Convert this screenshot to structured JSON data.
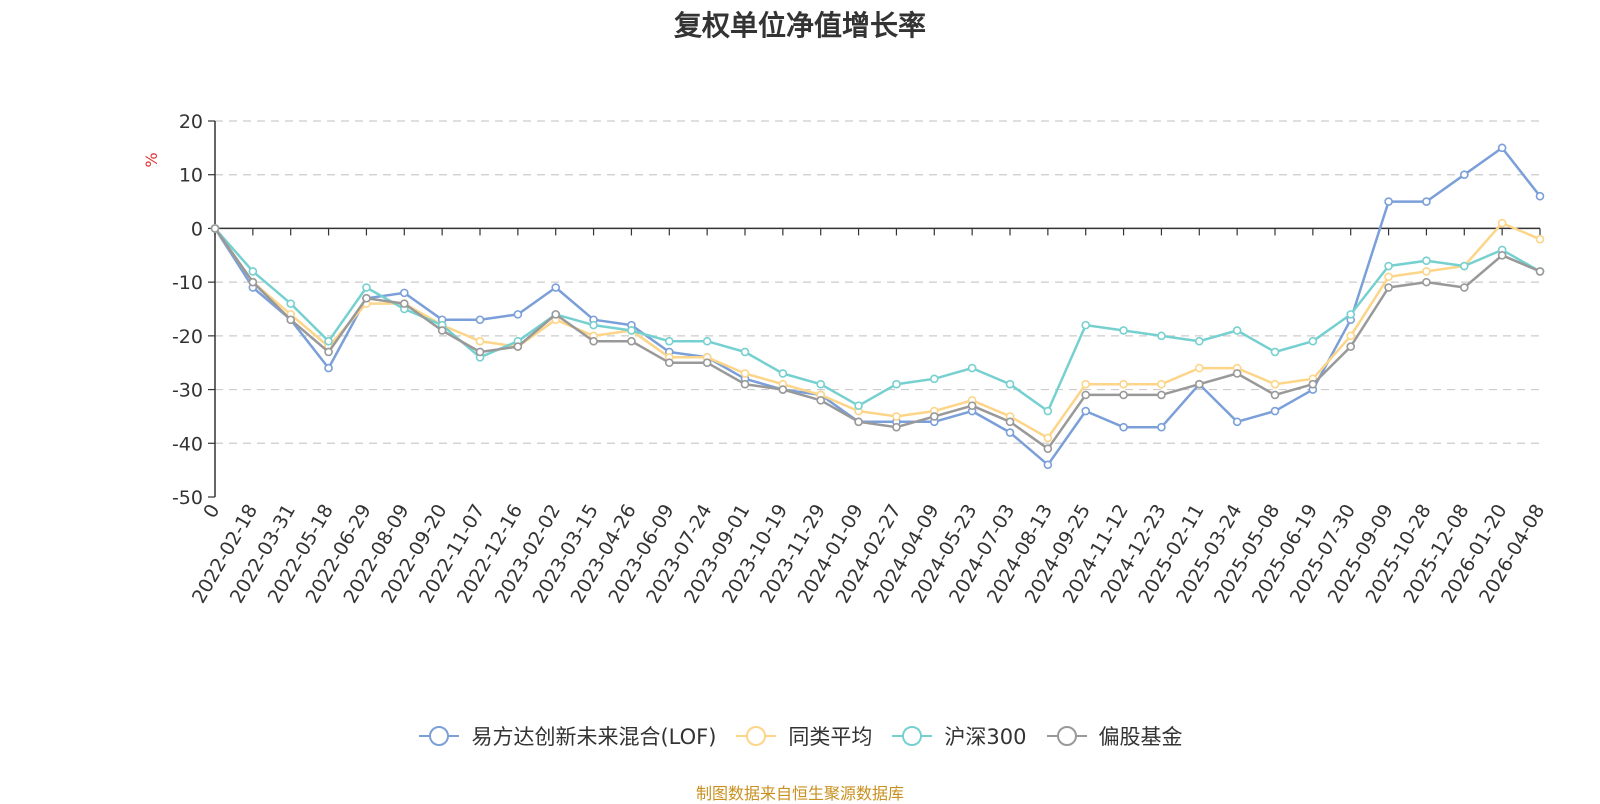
{
  "chart_data": {
    "type": "line",
    "title": "复权单位净值增长率",
    "ylabel": "%",
    "ylim": [
      -50,
      20
    ],
    "yticks": [
      20,
      10,
      0,
      -10,
      -20,
      -30,
      -40,
      -50
    ],
    "grid": true,
    "legend_position": "bottom",
    "x_tick_labels": [
      "0",
      "2022-02-18",
      "2022-03-31",
      "2022-05-18",
      "2022-06-29",
      "2022-08-09",
      "2022-09-20",
      "2022-11-07",
      "2022-12-16",
      "2023-02-02",
      "2023-03-15",
      "2023-04-26",
      "2023-06-09",
      "2023-07-24",
      "2023-09-01",
      "2023-10-19",
      "2023-11-29",
      "2024-01-09",
      "2024-02-27",
      "2024-04-09",
      "2024-05-23",
      "2024-07-03",
      "2024-08-13",
      "2024-09-25",
      "2024-11-12",
      "2024-12-23",
      "2025-02-11",
      "2025-03-24",
      "2025-05-08",
      "2025-06-19",
      "2025-07-30",
      "2025-09-09",
      "2025-10-28",
      "2025-12-08",
      "2026-01-20",
      "2026-04-08"
    ],
    "series": [
      {
        "name": "易方达创新未来混合(LOF)",
        "color": "#7b9fd8",
        "values": [
          0,
          -11,
          -17,
          -26,
          -13,
          -12,
          -17,
          -17,
          -16,
          -11,
          -17,
          -18,
          -23,
          -24,
          -28,
          -30,
          -31,
          -36,
          -36,
          -36,
          -34,
          -38,
          -44,
          -34,
          -37,
          -37,
          -29,
          -36,
          -34,
          -30,
          -17,
          5,
          5,
          10,
          15,
          6
        ]
      },
      {
        "name": "同类平均",
        "color": "#fdd589",
        "values": [
          0,
          -10,
          -16,
          -22,
          -14,
          -14,
          -18,
          -21,
          -22,
          -17,
          -20,
          -19,
          -24,
          -24,
          -27,
          -29,
          -31,
          -34,
          -35,
          -34,
          -32,
          -35,
          -39,
          -29,
          -29,
          -29,
          -26,
          -26,
          -29,
          -28,
          -20,
          -9,
          -8,
          -7,
          1,
          -2
        ]
      },
      {
        "name": "沪深300",
        "color": "#77d0d0",
        "values": [
          0,
          -8,
          -14,
          -21,
          -11,
          -15,
          -18,
          -24,
          -21,
          -16,
          -18,
          -19,
          -21,
          -21,
          -23,
          -27,
          -29,
          -33,
          -29,
          -28,
          -26,
          -29,
          -34,
          -18,
          -19,
          -20,
          -21,
          -19,
          -23,
          -21,
          -16,
          -7,
          -6,
          -7,
          -4,
          -8
        ]
      },
      {
        "name": "偏股基金",
        "color": "#999999",
        "values": [
          0,
          -10,
          -17,
          -23,
          -13,
          -14,
          -19,
          -23,
          -22,
          -16,
          -21,
          -21,
          -25,
          -25,
          -29,
          -30,
          -32,
          -36,
          -37,
          -35,
          -33,
          -36,
          -41,
          -31,
          -31,
          -31,
          -29,
          -27,
          -31,
          -29,
          -22,
          -11,
          -10,
          -11,
          -5,
          -8
        ]
      }
    ]
  },
  "source_note": "制图数据来自恒生聚源数据库"
}
